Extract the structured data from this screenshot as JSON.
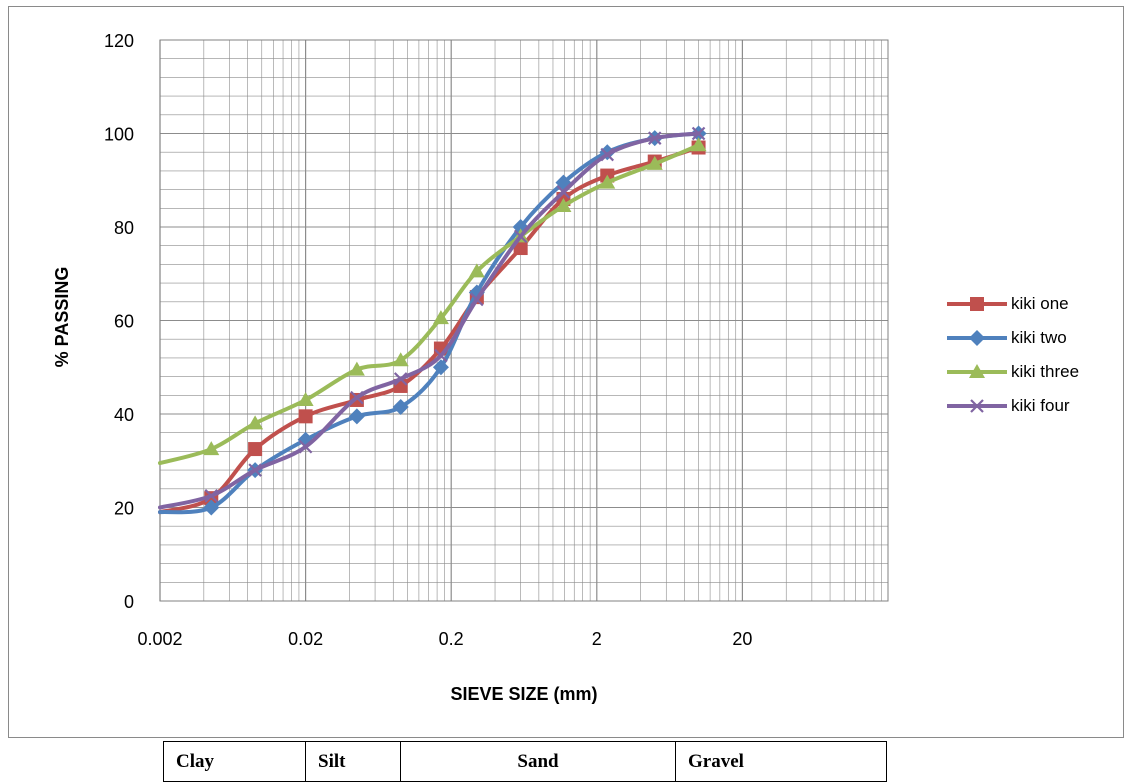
{
  "chart_data": {
    "type": "line",
    "title": "",
    "xlabel": "SIEVE SIZE (mm)",
    "ylabel": "% PASSING",
    "xscale": "log",
    "xlim": [
      0.002,
      200
    ],
    "ylim": [
      0,
      120
    ],
    "x_ticks": [
      "0.002",
      "0.02",
      "0.2",
      "2",
      "20"
    ],
    "y_ticks": [
      "0",
      "20",
      "40",
      "60",
      "80",
      "100",
      "120"
    ],
    "grid": true,
    "legend_position": "right",
    "series": [
      {
        "name": "kiki one",
        "color": "#c0504d",
        "marker": "square",
        "points": [
          [
            0.002,
            19
          ],
          [
            0.0045,
            22
          ],
          [
            0.009,
            32.5
          ],
          [
            0.02,
            39.5
          ],
          [
            0.045,
            43
          ],
          [
            0.09,
            46
          ],
          [
            0.17,
            54
          ],
          [
            0.3,
            65
          ],
          [
            0.6,
            75.5
          ],
          [
            1.18,
            86
          ],
          [
            2.36,
            91
          ],
          [
            5,
            94
          ],
          [
            10,
            97
          ]
        ]
      },
      {
        "name": "kiki two",
        "color": "#4f81bd",
        "marker": "diamond",
        "points": [
          [
            0.002,
            19
          ],
          [
            0.0045,
            20
          ],
          [
            0.009,
            28
          ],
          [
            0.02,
            34.5
          ],
          [
            0.045,
            39.5
          ],
          [
            0.09,
            41.5
          ],
          [
            0.17,
            50
          ],
          [
            0.3,
            66
          ],
          [
            0.6,
            80
          ],
          [
            1.18,
            89.5
          ],
          [
            2.36,
            96
          ],
          [
            5,
            99
          ],
          [
            10,
            100
          ]
        ]
      },
      {
        "name": "kiki three",
        "color": "#9bbb59",
        "marker": "triangle",
        "points": [
          [
            0.002,
            29.5
          ],
          [
            0.0045,
            32.5
          ],
          [
            0.009,
            38
          ],
          [
            0.02,
            43
          ],
          [
            0.045,
            49.5
          ],
          [
            0.09,
            51.5
          ],
          [
            0.17,
            60.5
          ],
          [
            0.3,
            70.5
          ],
          [
            0.6,
            78
          ],
          [
            1.18,
            84.5
          ],
          [
            2.36,
            89.5
          ],
          [
            5,
            93.5
          ],
          [
            10,
            97.5
          ]
        ]
      },
      {
        "name": "kiki four",
        "color": "#8064a2",
        "marker": "x",
        "points": [
          [
            0.002,
            20
          ],
          [
            0.0045,
            22.5
          ],
          [
            0.009,
            28
          ],
          [
            0.02,
            33
          ],
          [
            0.045,
            43.5
          ],
          [
            0.09,
            47.5
          ],
          [
            0.17,
            52.5
          ],
          [
            0.3,
            64.5
          ],
          [
            0.6,
            78
          ],
          [
            1.18,
            87.5
          ],
          [
            2.36,
            95.5
          ],
          [
            5,
            99
          ],
          [
            10,
            100
          ]
        ]
      }
    ]
  },
  "soil_table": {
    "clay": "Clay",
    "silt": "Silt",
    "sand": "Sand",
    "gravel": "Gravel"
  }
}
